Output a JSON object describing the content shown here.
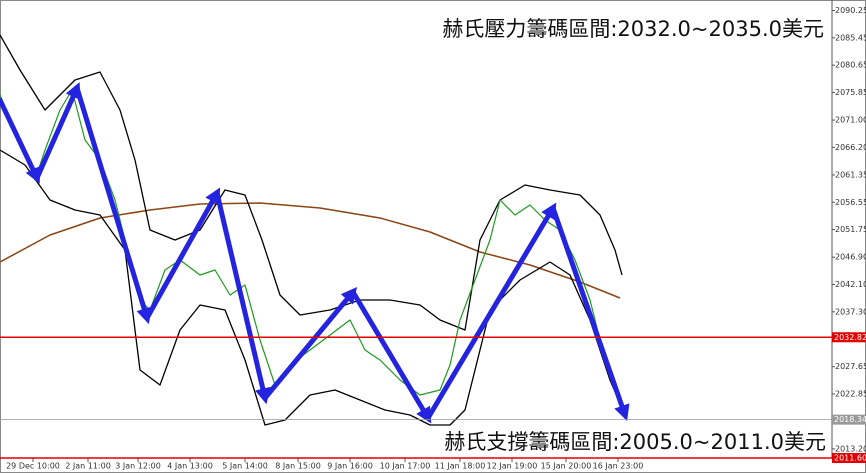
{
  "chart_data": {
    "type": "line",
    "annotations": [
      "赫氏壓力籌碼區間:2032.0~2035.0美元",
      "赫氏支撐籌碼區間:2005.0~2011.0美元"
    ],
    "xlim": [
      0,
      83.2
    ],
    "xticks": [
      {
        "value": 3.3,
        "label": "29 Dec 10:00"
      },
      {
        "value": 8.8,
        "label": "2 Jan 11:00"
      },
      {
        "value": 13.8,
        "label": "3 Jan 12:00"
      },
      {
        "value": 19.0,
        "label": "4 Jan 13:00"
      },
      {
        "value": 24.5,
        "label": "5 Jan 14:00"
      },
      {
        "value": 29.8,
        "label": "8 Jan 15:00"
      },
      {
        "value": 35.0,
        "label": "9 Jan 16:00"
      },
      {
        "value": 40.5,
        "label": "10 Jan 17:00"
      },
      {
        "value": 46.0,
        "label": "11 Jan 18:00"
      },
      {
        "value": 51.2,
        "label": "12 Jan 19:00"
      },
      {
        "value": 56.6,
        "label": "15 Jan 20:00"
      },
      {
        "value": 61.8,
        "label": "16 Jan 23:00"
      }
    ],
    "ylim": [
      2011.6,
      2092.1
    ],
    "yticks": [
      2090.25,
      2085.45,
      2080.65,
      2075.85,
      {
        "value": 2071.0,
        "label": "2071.00"
      },
      {
        "value": 2066.2,
        "label": "2066.20"
      },
      2061.35,
      2056.55,
      2051.75,
      {
        "value": 2046.9,
        "label": "2046.90"
      },
      {
        "value": 2042.1,
        "label": "2042.10"
      },
      {
        "value": 2037.3,
        "label": "2037.30"
      },
      2027.65,
      2022.85,
      {
        "value": 2013.2,
        "label": "2013.20"
      }
    ],
    "levels": [
      {
        "value": 2032.82,
        "label": "2032.82",
        "color": "#e00000"
      },
      {
        "value": 2018.34,
        "label": "2018.34",
        "color": "#9a9a9a"
      },
      {
        "value": 2011.6,
        "label": "2011.60",
        "color": "#e00000"
      }
    ],
    "series": [
      {
        "color": "#8b4513",
        "width": 1.5,
        "x": [
          0,
          5,
          10,
          15,
          20,
          26,
          32,
          38,
          43,
          48,
          53,
          58,
          62
        ],
        "values": [
          2046.05,
          2050.79,
          2053.78,
          2055.19,
          2056.24,
          2056.42,
          2055.54,
          2053.78,
          2051.32,
          2047.81,
          2045.52,
          2042.53,
          2039.72
        ]
      },
      {
        "color": "#000000",
        "width": 1.3,
        "x": [
          0,
          2,
          4.5,
          7.5,
          10,
          12,
          13.5,
          15,
          17.5,
          20,
          22.5,
          24.5,
          26.2,
          28,
          30,
          33,
          36,
          39,
          42,
          44,
          46.5,
          48,
          50,
          52.5,
          55,
          58,
          60,
          61.5,
          62.2
        ],
        "values": [
          2085.95,
          2079.79,
          2072.76,
          2078.04,
          2079.44,
          2072.76,
          2063.98,
          2051.67,
          2049.92,
          2051.67,
          2058.7,
          2057.82,
          2049.92,
          2040.25,
          2036.73,
          2037.61,
          2039.37,
          2039.37,
          2038.49,
          2035.85,
          2034.1,
          2049.92,
          2056.95,
          2059.58,
          2058.7,
          2057.82,
          2054.31,
          2048.16,
          2043.76
        ]
      },
      {
        "color": "#000000",
        "width": 1.3,
        "x": [
          0,
          2.5,
          5,
          7.5,
          10,
          12.5,
          14,
          16,
          18,
          20,
          22.5,
          24.5,
          26.5,
          28.5,
          31,
          33.5,
          36,
          38.5,
          41,
          43,
          45,
          46.5,
          49,
          52,
          55,
          57,
          59,
          61,
          62.5
        ],
        "values": [
          2065.73,
          2063.1,
          2056.95,
          2055.19,
          2054.31,
          2048.16,
          2027.07,
          2024.43,
          2034.1,
          2038.49,
          2037.61,
          2028.82,
          2017.4,
          2018.28,
          2022.67,
          2023.55,
          2021.79,
          2020.04,
          2019.16,
          2017.4,
          2017.4,
          2020.04,
          2037.61,
          2042.89,
          2046.05,
          2043.76,
          2035.85,
          2025.31,
          2019.16
        ]
      },
      {
        "color": "#1f9a1f",
        "width": 1.2,
        "x": [
          0,
          1,
          2.5,
          3.5,
          4.5,
          6,
          7.2,
          8.5,
          10,
          11.5,
          13,
          14,
          15,
          16.5,
          18,
          20,
          21.5,
          23,
          24.5,
          26,
          27.5,
          29,
          31,
          33,
          35,
          36.5,
          38,
          40,
          42,
          44,
          45,
          46,
          47.5,
          49,
          50,
          51.5,
          53,
          54.5,
          56,
          57.5,
          59,
          60,
          61,
          62
        ],
        "values": [
          2075.4,
          2071.01,
          2065.73,
          2060.46,
          2065.73,
          2072.76,
          2076.28,
          2067.49,
          2063.98,
          2056.95,
          2046.4,
          2039.37,
          2037.61,
          2044.64,
          2046.4,
          2043.76,
          2044.64,
          2040.25,
          2042.01,
          2032.34,
          2024.43,
          2027.95,
          2030.58,
          2033.22,
          2035.85,
          2030.58,
          2028.82,
          2025.31,
          2022.67,
          2023.55,
          2027.95,
          2035.85,
          2042.89,
          2049.92,
          2056.95,
          2054.31,
          2056.07,
          2053.43,
          2051.67,
          2046.4,
          2039.37,
          2032.34,
          2027.07,
          2022.67
        ]
      },
      {
        "color": "#2424e0",
        "width": 5,
        "arrows": true,
        "x": [
          0,
          3.7,
          7.7,
          14.7,
          21.7,
          26.5,
          35.3,
          42.8,
          55.3,
          62.5
        ],
        "values": [
          2074.52,
          2060.81,
          2076.63,
          2036.21,
          2058.17,
          2022.15,
          2040.78,
          2018.63,
          2055.54,
          2019.16
        ]
      }
    ]
  }
}
